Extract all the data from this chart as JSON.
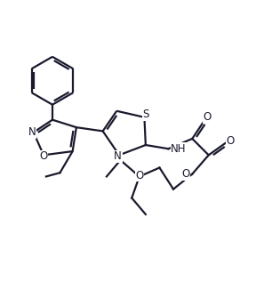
{
  "background_color": "#ffffff",
  "line_color": "#1a1a2e",
  "line_width": 1.6,
  "font_size": 8.5,
  "figsize": [
    2.88,
    3.26
  ],
  "dpi": 100,
  "xlim": [
    0,
    10
  ],
  "ylim": [
    0,
    11.5
  ]
}
